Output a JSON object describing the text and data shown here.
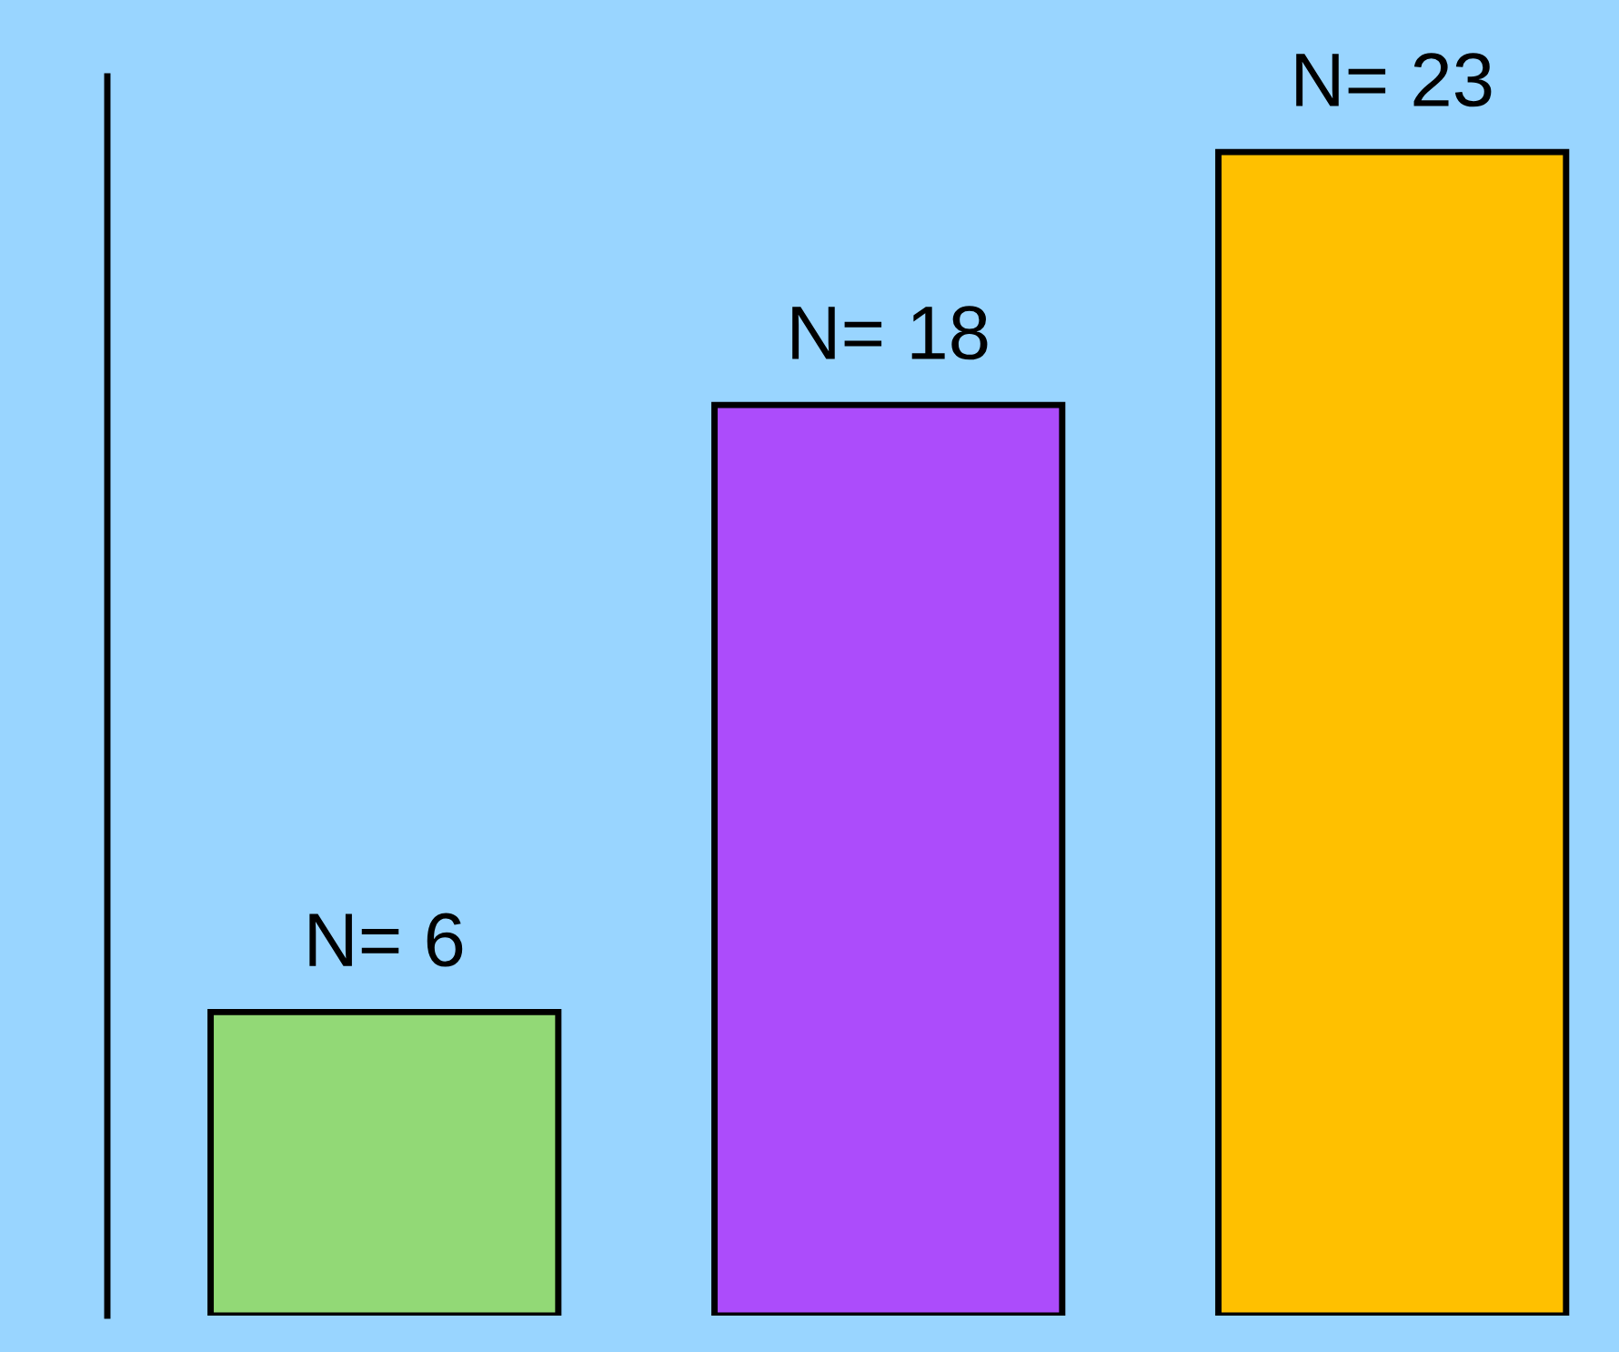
{
  "chart_data": {
    "type": "bar",
    "categories": [
      null,
      null,
      null
    ],
    "values": [
      6,
      18,
      23
    ],
    "colors": [
      "#92d976",
      "#ac4cfb",
      "#ffc000"
    ],
    "value_labels": [
      "N= 6",
      "N= 18",
      "N= 23"
    ],
    "grid": false,
    "legend": false
  }
}
